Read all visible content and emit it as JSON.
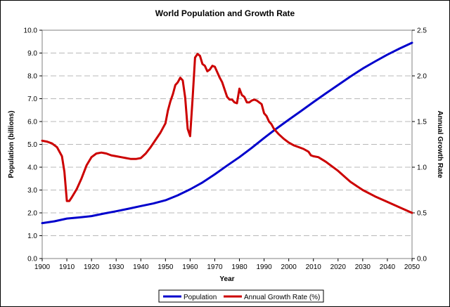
{
  "chart_data": {
    "type": "line",
    "title": "World Population and Growth Rate",
    "xlabel": "Year",
    "ylabel_left": "Population (billions)",
    "ylabel_right": "Annual Growth Rate",
    "xlim": [
      1900,
      2050
    ],
    "ylim_left": [
      0,
      10
    ],
    "ylim_right": [
      0,
      2.5
    ],
    "x_ticks": [
      "1900",
      "1910",
      "1920",
      "1930",
      "1940",
      "1950",
      "1960",
      "1970",
      "1980",
      "1990",
      "2000",
      "2010",
      "2020",
      "2030",
      "2040",
      "2050"
    ],
    "y_ticks_left": [
      "0.0",
      "1.0",
      "2.0",
      "3.0",
      "4.0",
      "5.0",
      "6.0",
      "7.0",
      "8.0",
      "9.0",
      "10.0"
    ],
    "y_ticks_right": [
      "0.0",
      "0.5",
      "1.0",
      "1.5",
      "2.0",
      "2.5"
    ],
    "grid": "horizontal dashed",
    "legend_position": "bottom",
    "series": [
      {
        "name": "Population",
        "axis": "left",
        "color": "#0000cc",
        "x": [
          1900,
          1905,
          1910,
          1915,
          1920,
          1925,
          1930,
          1935,
          1940,
          1945,
          1950,
          1955,
          1960,
          1965,
          1970,
          1975,
          1980,
          1985,
          1990,
          1995,
          2000,
          2005,
          2010,
          2015,
          2020,
          2025,
          2030,
          2035,
          2040,
          2045,
          2050
        ],
        "y": [
          1.55,
          1.63,
          1.75,
          1.8,
          1.86,
          1.97,
          2.07,
          2.18,
          2.3,
          2.41,
          2.55,
          2.77,
          3.03,
          3.33,
          3.69,
          4.07,
          4.44,
          4.85,
          5.28,
          5.69,
          6.08,
          6.46,
          6.85,
          7.23,
          7.6,
          7.97,
          8.32,
          8.63,
          8.93,
          9.2,
          9.45
        ]
      },
      {
        "name": "Annual Growth Rate (%)",
        "axis": "right",
        "color": "#cc0000",
        "x": [
          1900,
          1902,
          1904,
          1906,
          1908,
          1909,
          1910,
          1911,
          1912,
          1914,
          1916,
          1918,
          1920,
          1922,
          1924,
          1926,
          1928,
          1930,
          1932,
          1934,
          1936,
          1938,
          1940,
          1942,
          1944,
          1946,
          1948,
          1950,
          1951,
          1952,
          1953,
          1954,
          1955,
          1956,
          1957,
          1958,
          1959,
          1960,
          1961,
          1962,
          1963,
          1964,
          1965,
          1966,
          1967,
          1968,
          1969,
          1970,
          1971,
          1972,
          1973,
          1974,
          1975,
          1976,
          1977,
          1978,
          1979,
          1980,
          1981,
          1982,
          1983,
          1984,
          1985,
          1986,
          1987,
          1988,
          1989,
          1990,
          1991,
          1992,
          1993,
          1994,
          1996,
          1998,
          2000,
          2002,
          2004,
          2006,
          2008,
          2009,
          2010,
          2012,
          2015,
          2020,
          2025,
          2030,
          2035,
          2040,
          2045,
          2050
        ],
        "y": [
          1.29,
          1.28,
          1.26,
          1.22,
          1.12,
          0.95,
          0.63,
          0.63,
          0.67,
          0.76,
          0.88,
          1.02,
          1.11,
          1.15,
          1.16,
          1.15,
          1.13,
          1.12,
          1.11,
          1.1,
          1.09,
          1.09,
          1.1,
          1.15,
          1.22,
          1.3,
          1.38,
          1.48,
          1.62,
          1.72,
          1.8,
          1.9,
          1.93,
          1.98,
          1.95,
          1.76,
          1.42,
          1.34,
          1.75,
          2.2,
          2.24,
          2.22,
          2.13,
          2.11,
          2.05,
          2.07,
          2.11,
          2.1,
          2.04,
          1.98,
          1.93,
          1.85,
          1.77,
          1.74,
          1.74,
          1.71,
          1.7,
          1.86,
          1.79,
          1.77,
          1.71,
          1.71,
          1.73,
          1.74,
          1.73,
          1.71,
          1.69,
          1.59,
          1.56,
          1.5,
          1.47,
          1.42,
          1.36,
          1.31,
          1.27,
          1.24,
          1.22,
          1.2,
          1.17,
          1.13,
          1.12,
          1.11,
          1.06,
          0.96,
          0.84,
          0.75,
          0.68,
          0.62,
          0.56,
          0.5
        ]
      }
    ]
  }
}
